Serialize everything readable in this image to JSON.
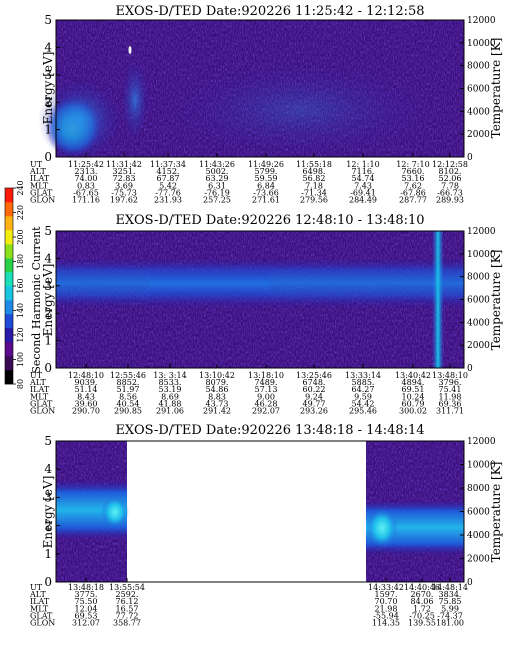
{
  "colorbar": {
    "label": "Second Harmonic Current",
    "ticks": [
      "240",
      "220",
      "200",
      "180",
      "160",
      "140",
      "120",
      "100",
      "80"
    ],
    "colors": [
      "#000000",
      "#3a0a55",
      "#5c0a8c",
      "#2b1aa8",
      "#1f4bd6",
      "#1f8ae6",
      "#19c4e0",
      "#19e0b8",
      "#2ad24a",
      "#8de11c",
      "#f2ee14",
      "#ffb414",
      "#ff6a0a",
      "#ff1a0a"
    ]
  },
  "chart_data": [
    {
      "type": "heatmap",
      "title": "EXOS-D/TED   Date:920226  11:25:42 - 12:12:58",
      "ylabel": "Energy [eV]",
      "y2label": "Temperature [K]",
      "ylim": [
        0,
        5
      ],
      "yticks": [
        "0",
        "1",
        "2",
        "3",
        "4",
        "5"
      ],
      "y2ticks": [
        "0",
        "2000",
        "4000",
        "6000",
        "8000",
        "10000",
        "12000"
      ],
      "ephemeris_labels": [
        "UT",
        "ALT",
        "ILAT",
        "MLT",
        "GLAT",
        "GLON"
      ],
      "columns": [
        [
          "11:25:42",
          "2313.",
          "74.00",
          "0.83",
          "-67.65",
          "171.16"
        ],
        [
          "11:31:42",
          "3251.",
          "72.83",
          "3.69",
          "-75.73",
          "197.62"
        ],
        [
          "11:37:34",
          "4152.",
          "67.87",
          "5.42",
          "-77.76",
          "231.93"
        ],
        [
          "11:43:26",
          "5002.",
          "63.29",
          "6.31",
          "-76.19",
          "257.25"
        ],
        [
          "11:49:26",
          "5799.",
          "59.59",
          "6.84",
          "-73.66",
          "271.61"
        ],
        [
          "11:55:18",
          "6498.",
          "56.82",
          "7.18",
          "-71.34",
          "279.56"
        ],
        [
          "12: 1:10",
          "7116.",
          "54.74",
          "7.43",
          "-69.41",
          "284.49"
        ],
        [
          "12: 7:10",
          "7660.",
          "53.16",
          "7.62",
          "-67.86",
          "287.77"
        ],
        [
          "12:12:58",
          "8102.",
          "52.06",
          "7.78",
          "-66.73",
          "289.93"
        ]
      ]
    },
    {
      "type": "heatmap",
      "title": "EXOS-D/TED   Date:920226  12:48:10 - 13:48:10",
      "ylabel": "Energy [eV]",
      "y2label": "Temperature [K]",
      "ylim": [
        0,
        5
      ],
      "yticks": [
        "0",
        "1",
        "2",
        "3",
        "4",
        "5"
      ],
      "y2ticks": [
        "0",
        "2000",
        "4000",
        "6000",
        "8000",
        "10000",
        "12000"
      ],
      "ephemeris_labels": [
        "UT",
        "ALT",
        "ILAT",
        "MLT",
        "GLAT",
        "GLON"
      ],
      "columns": [
        [
          "12:48:10",
          "9039.",
          "51.14",
          "8.43",
          "39.60",
          "290.70"
        ],
        [
          "12:55:46",
          "8852.",
          "51.97",
          "8.56",
          "40.54",
          "290.85"
        ],
        [
          "13: 3:14",
          "8533.",
          "53.19",
          "8.69",
          "41.88",
          "291.06"
        ],
        [
          "13:10:42",
          "8079.",
          "54.86",
          "8.83",
          "43.73",
          "291.42"
        ],
        [
          "13:18:10",
          "7489.",
          "57.13",
          "9.00",
          "46.28",
          "292.07"
        ],
        [
          "13:25:46",
          "6748.",
          "60.22",
          "9.24",
          "49.77",
          "293.26"
        ],
        [
          "13:33:14",
          "5885.",
          "64.27",
          "9.59",
          "54.42",
          "295.46"
        ],
        [
          "13:40:42",
          "4894.",
          "69.51",
          "10.24",
          "60.79",
          "300.02"
        ],
        [
          "13:48:10",
          "3796.",
          "75.41",
          "11.98",
          "69.36",
          "311.71"
        ]
      ]
    },
    {
      "type": "heatmap",
      "title": "EXOS-D/TED   Date:920226  13:48:18 - 14:48:14",
      "ylabel": "Energy [eV]",
      "y2label": "Temperature [K]",
      "ylim": [
        0,
        5
      ],
      "yticks": [
        "0",
        "1",
        "2",
        "3",
        "4",
        "5"
      ],
      "y2ticks": [
        "0",
        "2000",
        "4000",
        "6000",
        "8000",
        "10000",
        "12000"
      ],
      "ephemeris_labels": [
        "UT",
        "ALT",
        "ILAT",
        "MLT",
        "GLAT",
        "GLON"
      ],
      "columns": [
        [
          "13:48:18",
          "3775.",
          "75.50",
          "12.04",
          "69.53",
          "312.07"
        ],
        [
          "13:55:54",
          "2592.",
          "76.12",
          "16.57",
          "77.72",
          "358.77"
        ],
        [
          "14:33:42",
          "1597.",
          "70.70",
          "21.98",
          "-55.94",
          "114.35"
        ],
        [
          "14:40:46",
          "2670.",
          "84.06",
          "1.72",
          "-70.25",
          "139.55"
        ],
        [
          "14:48:14",
          "3834.",
          "75.85",
          "5.99",
          "-74.37",
          "181.00"
        ]
      ]
    }
  ]
}
